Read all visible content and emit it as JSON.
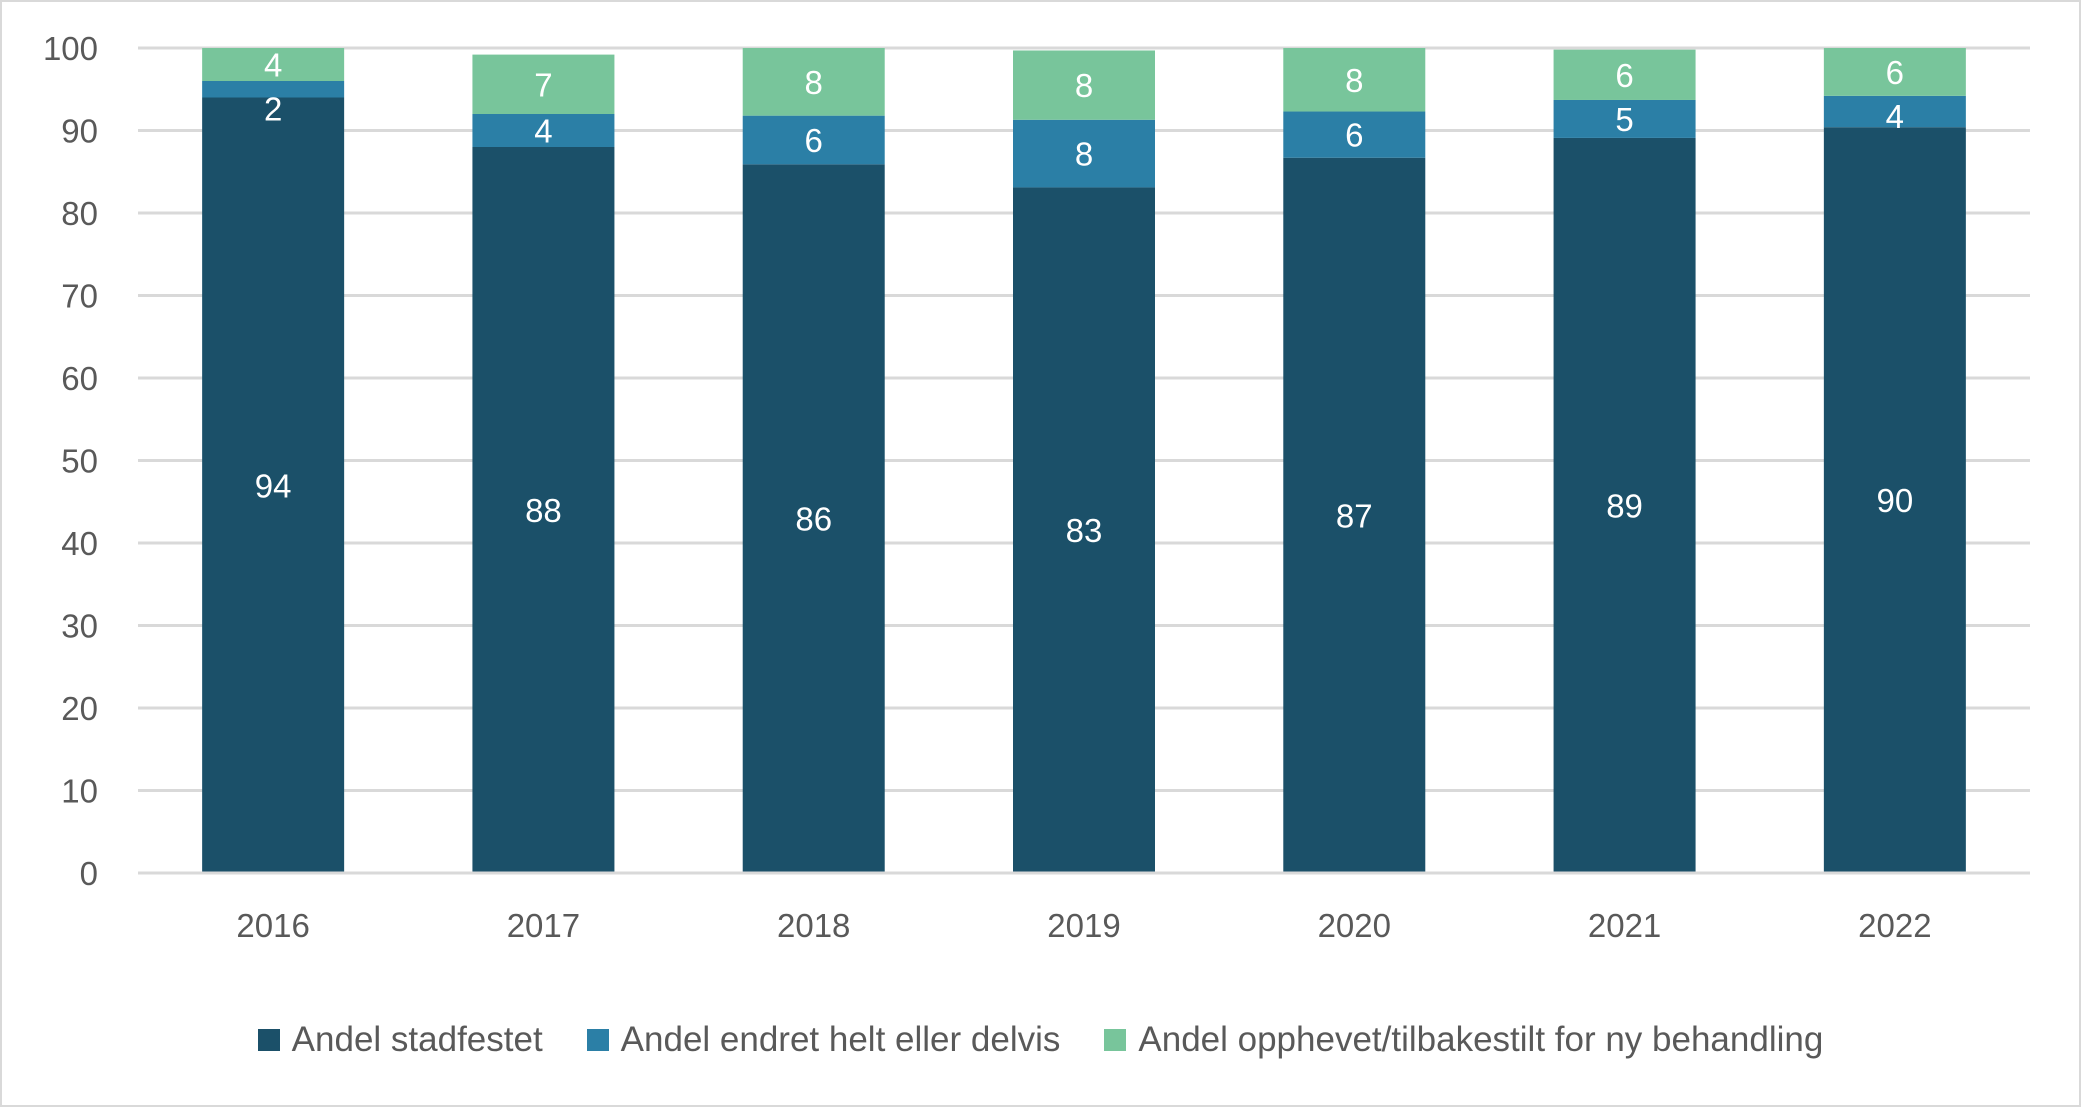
{
  "chart_data": {
    "type": "bar",
    "stacked": true,
    "categories": [
      "2016",
      "2017",
      "2018",
      "2019",
      "2020",
      "2021",
      "2022"
    ],
    "series": [
      {
        "name": "Andel stadfestet",
        "color": "#1b5069",
        "values": [
          94,
          88,
          85.9,
          83.1,
          86.7,
          89.1,
          90.4
        ],
        "labels": [
          "94",
          "88",
          "86",
          "83",
          "87",
          "89",
          "90"
        ]
      },
      {
        "name": "Andel endret helt eller delvis",
        "color": "#2b7fa6",
        "values": [
          2,
          4,
          5.9,
          8.2,
          5.6,
          4.6,
          3.8
        ],
        "labels": [
          "2",
          "4",
          "6",
          "8",
          "6",
          "5",
          "4"
        ]
      },
      {
        "name": "Andel opphevet/tilbakestilt for ny behandling",
        "color": "#78c59b",
        "values": [
          4,
          7.2,
          8.2,
          8.4,
          7.7,
          6.1,
          5.8
        ],
        "labels": [
          "4",
          "7",
          "8",
          "8",
          "8",
          "6",
          "6"
        ]
      }
    ],
    "title": "",
    "xlabel": "",
    "ylabel": "",
    "ylim": [
      0,
      100
    ],
    "yticks": [
      0,
      10,
      20,
      30,
      40,
      50,
      60,
      70,
      80,
      90,
      100
    ],
    "grid": true,
    "legend_position": "bottom"
  }
}
